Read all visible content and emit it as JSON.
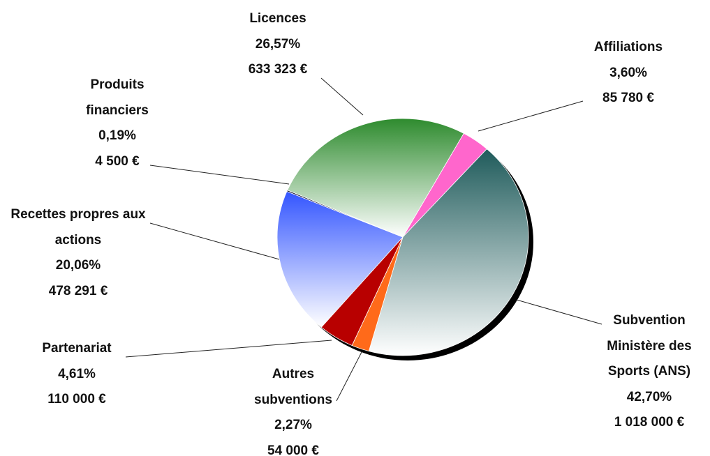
{
  "chart_data": {
    "type": "pie",
    "categories": [
      "Affiliations",
      "Subvention Ministère des Sports (ANS)",
      "Autres subventions",
      "Partenariat",
      "Recettes propres aux actions",
      "Produits financiers",
      "Licences"
    ],
    "values": [
      3.6,
      42.7,
      2.27,
      4.61,
      20.06,
      0.19,
      26.57
    ],
    "value_labels": [
      "3,60%",
      "42,70%",
      "2,27%",
      "4,61%",
      "20,06%",
      "0,19%",
      "26,57%"
    ],
    "amounts": [
      85780,
      1018000,
      54000,
      110000,
      478291,
      4500,
      633323
    ],
    "amount_labels": [
      "85 780 €",
      "1 018 000 €",
      "54 000 €",
      "110 000 €",
      "478 291 €",
      "4 500 €",
      "633 323 €"
    ],
    "colors": [
      "#ff66cc",
      "#1f5b5b",
      "#ff6a1a",
      "#b80000",
      "#3355ff",
      "#1a1a33",
      "#2e8b2e"
    ]
  }
}
